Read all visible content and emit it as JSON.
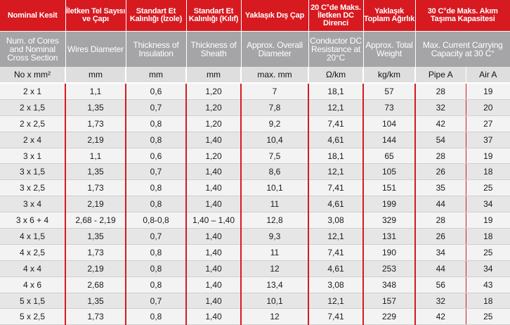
{
  "header_tr": [
    "Nominal Kesit",
    "İletken Tel Sayısı ve Çapı",
    "Standart Et Kalınlığı (İzole)",
    "Standart Et Kalınlığı (Kılıf)",
    "Yaklaşık Dış Çap",
    "20 C°de Maks. İletken DC Direnci",
    "Yaklaşık Toplam Ağırlık",
    "30 C°de Maks. Akım Taşıma Kapasitesi"
  ],
  "header_en": [
    "Num. of Cores and Nominal Cross Section",
    "Wires Diameter",
    "Thickness of Insulation",
    "Thickness of Sheath",
    "Approx. Overall Diameter",
    "Conductor DC Resistance at 20°C",
    "Approx. Total Weight",
    "Max. Current Carrying Capacity at 30 C°"
  ],
  "units": [
    "No x mm²",
    "mm",
    "mm",
    "mm",
    "max. mm",
    "Ω/km",
    "kg/km",
    "Pipe A",
    "Air A"
  ],
  "rows": [
    [
      "2 x 1",
      "1,1",
      "0,6",
      "1,20",
      "7",
      "18,1",
      "57",
      "28",
      "19"
    ],
    [
      "2 x 1,5",
      "1,35",
      "0,7",
      "1,20",
      "7,8",
      "12,1",
      "73",
      "32",
      "20"
    ],
    [
      "2 x 2,5",
      "1,73",
      "0,8",
      "1,20",
      "9,2",
      "7,41",
      "104",
      "42",
      "27"
    ],
    [
      "2 x 4",
      "2,19",
      "0,8",
      "1,40",
      "10,4",
      "4,61",
      "144",
      "54",
      "37"
    ],
    [
      "3 x 1",
      "1,1",
      "0,6",
      "1,20",
      "7,5",
      "18,1",
      "65",
      "28",
      "19"
    ],
    [
      "3 x 1,5",
      "1,35",
      "0,7",
      "1,40",
      "8,6",
      "12,1",
      "105",
      "26",
      "18"
    ],
    [
      "3 x 2,5",
      "1,73",
      "0,8",
      "1,40",
      "10,1",
      "7,41",
      "151",
      "35",
      "25"
    ],
    [
      "3 x 4",
      "2,19",
      "0,8",
      "1,40",
      "11",
      "4,61",
      "199",
      "44",
      "34"
    ],
    [
      "3 x 6 + 4",
      "2,68 - 2,19",
      "0,8-0,8",
      "1,40 – 1,40",
      "12,8",
      "3,08",
      "329",
      "28",
      "19"
    ],
    [
      "4 x 1,5",
      "1,35",
      "0,7",
      "1,40",
      "9,3",
      "12,1",
      "131",
      "26",
      "18"
    ],
    [
      "4 x 2,5",
      "1,73",
      "0,8",
      "1,40",
      "11",
      "7,41",
      "190",
      "34",
      "25"
    ],
    [
      "4 x 4",
      "2,19",
      "0,8",
      "1,40",
      "12",
      "4,61",
      "253",
      "44",
      "34"
    ],
    [
      "4 x 6",
      "2,68",
      "0,8",
      "1,40",
      "13,4",
      "3,08",
      "348",
      "56",
      "43"
    ],
    [
      "5 x 1,5",
      "1,35",
      "0,7",
      "1,40",
      "10,1",
      "12,1",
      "157",
      "32",
      "18"
    ],
    [
      "5 x 2,5",
      "1,73",
      "0,8",
      "1,40",
      "12",
      "7,41",
      "229",
      "42",
      "25"
    ]
  ]
}
